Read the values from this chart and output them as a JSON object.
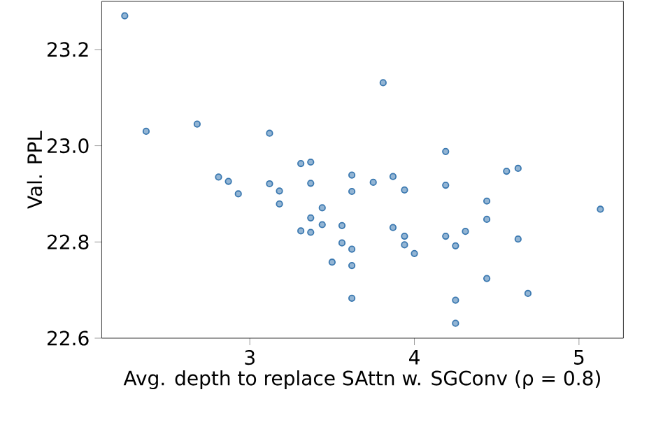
{
  "chart_data": {
    "type": "scatter",
    "xlabel": "Avg. depth to replace SAttn w. SGConv (ρ = 0.8)",
    "ylabel": "Val. PPL",
    "x": [
      2.24,
      2.37,
      2.68,
      2.81,
      2.87,
      2.93,
      3.12,
      3.12,
      3.18,
      3.18,
      3.31,
      3.37,
      3.37,
      3.44,
      3.37,
      3.44,
      3.31,
      3.37,
      3.56,
      3.56,
      3.5,
      3.62,
      3.62,
      3.62,
      3.62,
      3.62,
      3.75,
      3.81,
      3.87,
      3.94,
      3.87,
      3.94,
      3.94,
      4.0,
      4.19,
      4.19,
      4.19,
      4.25,
      4.31,
      4.25,
      4.25,
      4.44,
      4.44,
      4.44,
      4.56,
      4.63,
      4.63,
      4.69,
      5.13
    ],
    "values": [
      23.27,
      23.03,
      23.045,
      22.935,
      22.926,
      22.9,
      23.026,
      22.921,
      22.906,
      22.879,
      22.963,
      22.966,
      22.922,
      22.871,
      22.85,
      22.836,
      22.823,
      22.82,
      22.834,
      22.798,
      22.758,
      22.939,
      22.905,
      22.785,
      22.751,
      22.683,
      22.924,
      23.131,
      22.936,
      22.908,
      22.83,
      22.812,
      22.794,
      22.776,
      22.988,
      22.918,
      22.812,
      22.792,
      22.822,
      22.679,
      22.631,
      22.885,
      22.847,
      22.724,
      22.947,
      22.953,
      22.806,
      22.693,
      22.868
    ],
    "color": "#3a78b0",
    "xlim": [
      2.1,
      5.27
    ],
    "ylim": [
      22.6,
      23.3
    ],
    "xticks": [
      3,
      4,
      5
    ],
    "yticks": [
      22.6,
      22.8,
      {
        "value": 23.0,
        "label": "23.0"
      },
      23.2
    ]
  }
}
